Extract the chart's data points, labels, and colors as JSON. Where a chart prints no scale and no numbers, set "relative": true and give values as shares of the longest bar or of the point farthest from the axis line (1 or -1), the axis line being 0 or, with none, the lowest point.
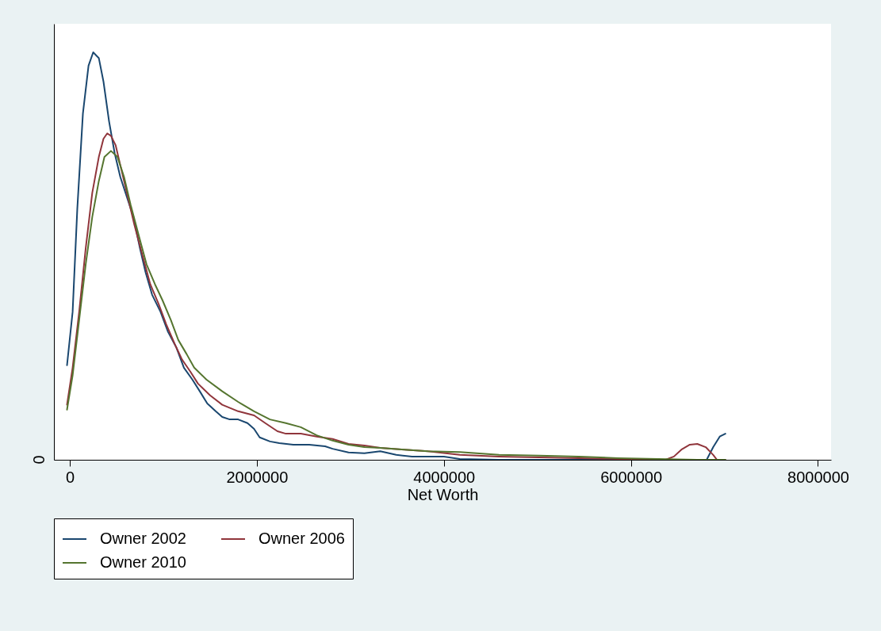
{
  "chart_data": {
    "type": "line",
    "xlabel": "Net Worth",
    "relative": true,
    "xlim": [
      -170000,
      8140000
    ],
    "xticks": [
      0,
      2000000,
      4000000,
      6000000,
      8000000
    ],
    "annotations": [
      "0"
    ],
    "legend": "bottom",
    "series": [
      {
        "name": "Owner 2002",
        "color": "#1a476f",
        "x": [
          -30000,
          30000,
          80000,
          140000,
          200000,
          250000,
          310000,
          360000,
          420000,
          480000,
          540000,
          610000,
          680000,
          750000,
          810000,
          880000,
          970000,
          1050000,
          1140000,
          1220000,
          1310000,
          1390000,
          1470000,
          1560000,
          1630000,
          1710000,
          1800000,
          1900000,
          1970000,
          2030000,
          2140000,
          2240000,
          2390000,
          2560000,
          2730000,
          2810000,
          2980000,
          3150000,
          3320000,
          3490000,
          3660000,
          3830000,
          4000000,
          4170000,
          4590000,
          5020000,
          5860000,
          6710000,
          6810000,
          6880000,
          6950000,
          7010000
        ],
        "values": [
          0.232,
          0.363,
          0.616,
          0.85,
          0.967,
          1,
          0.986,
          0.928,
          0.83,
          0.752,
          0.694,
          0.645,
          0.596,
          0.519,
          0.46,
          0.405,
          0.363,
          0.314,
          0.275,
          0.226,
          0.197,
          0.168,
          0.138,
          0.119,
          0.105,
          0.099,
          0.099,
          0.09,
          0.076,
          0.055,
          0.045,
          0.041,
          0.037,
          0.037,
          0.033,
          0.027,
          0.018,
          0.016,
          0.021,
          0.012,
          0.008,
          0.008,
          0.008,
          0.002,
          0,
          0,
          0,
          0,
          0,
          0.031,
          0.057,
          0.064
        ]
      },
      {
        "name": "Owner 2006",
        "color": "#90353b",
        "x": [
          -30000,
          30000,
          100000,
          170000,
          240000,
          310000,
          360000,
          400000,
          440000,
          490000,
          540000,
          610000,
          690000,
          780000,
          860000,
          950000,
          1030000,
          1120000,
          1200000,
          1290000,
          1370000,
          1500000,
          1630000,
          1800000,
          1970000,
          2090000,
          2220000,
          2310000,
          2470000,
          2640000,
          2810000,
          2980000,
          3150000,
          3320000,
          3580000,
          3830000,
          4170000,
          4590000,
          5020000,
          5440000,
          5860000,
          6370000,
          6460000,
          6540000,
          6630000,
          6710000,
          6800000,
          6880000,
          6920000,
          7010000
        ],
        "values": [
          0.135,
          0.226,
          0.363,
          0.519,
          0.655,
          0.743,
          0.788,
          0.801,
          0.795,
          0.772,
          0.723,
          0.655,
          0.577,
          0.499,
          0.431,
          0.382,
          0.333,
          0.285,
          0.246,
          0.216,
          0.187,
          0.158,
          0.135,
          0.119,
          0.109,
          0.09,
          0.07,
          0.064,
          0.064,
          0.057,
          0.051,
          0.039,
          0.035,
          0.029,
          0.025,
          0.021,
          0.012,
          0.008,
          0.006,
          0.004,
          0.002,
          0,
          0.008,
          0.025,
          0.037,
          0.039,
          0.031,
          0.012,
          0,
          0
        ]
      },
      {
        "name": "Owner 2010",
        "color": "#55752f",
        "x": [
          -30000,
          30000,
          100000,
          170000,
          240000,
          310000,
          370000,
          440000,
          510000,
          580000,
          650000,
          740000,
          820000,
          910000,
          990000,
          1080000,
          1160000,
          1250000,
          1330000,
          1460000,
          1630000,
          1800000,
          1970000,
          2140000,
          2310000,
          2470000,
          2640000,
          2810000,
          2980000,
          3150000,
          3320000,
          3580000,
          3830000,
          4170000,
          4590000,
          5020000,
          5440000,
          5860000,
          6290000,
          6710000,
          7010000
        ],
        "values": [
          0.123,
          0.207,
          0.343,
          0.48,
          0.596,
          0.684,
          0.743,
          0.758,
          0.743,
          0.694,
          0.626,
          0.548,
          0.48,
          0.431,
          0.392,
          0.343,
          0.294,
          0.259,
          0.226,
          0.197,
          0.168,
          0.142,
          0.119,
          0.099,
          0.09,
          0.08,
          0.06,
          0.047,
          0.037,
          0.031,
          0.029,
          0.025,
          0.021,
          0.019,
          0.012,
          0.01,
          0.008,
          0.004,
          0.002,
          0,
          0
        ]
      }
    ]
  }
}
